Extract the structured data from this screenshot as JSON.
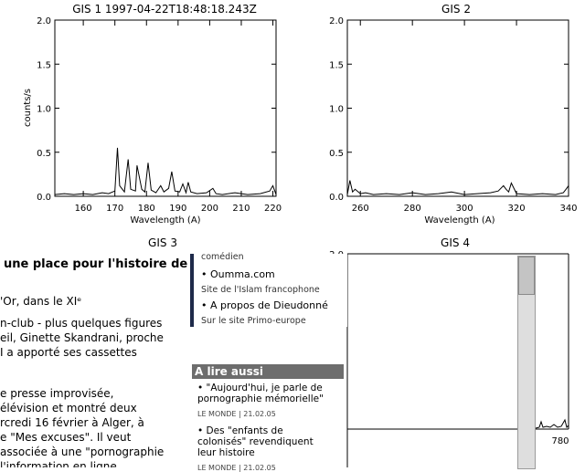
{
  "plots": [
    {
      "title": "GIS 1 1997-04-22T18:48:18.243Z",
      "ylabel": "counts/s",
      "xlabel": "Wavelength (A)",
      "xticks": [
        "160",
        "170",
        "180",
        "190",
        "200",
        "210",
        "220"
      ],
      "yticks": [
        "0.0",
        "0.5",
        "1.0",
        "1.5",
        "2.0"
      ]
    },
    {
      "title": "GIS 2",
      "ylabel": "",
      "xlabel": "Wavelength (A)",
      "xticks": [
        "260",
        "280",
        "300",
        "320",
        "340"
      ],
      "yticks": [
        "0.0",
        "0.5",
        "1.0",
        "1.5",
        "2.0"
      ]
    },
    {
      "title": "GIS 3"
    },
    {
      "title": "GIS 4",
      "yticks": [
        "2.0"
      ],
      "xticks": [
        "780"
      ]
    }
  ],
  "chart_data": [
    {
      "type": "line",
      "title": "GIS 1 1997-04-22T18:48:18.243Z",
      "xlabel": "Wavelength (A)",
      "ylabel": "counts/s",
      "xlim": [
        151,
        221
      ],
      "ylim": [
        0,
        2
      ],
      "x": [
        151,
        154,
        157,
        160,
        163,
        166,
        168,
        170,
        170.8,
        171.5,
        173,
        174.2,
        175,
        176.5,
        177,
        178.5,
        179.5,
        180.5,
        181.5,
        183,
        184.5,
        185.5,
        187,
        188,
        189,
        190.5,
        191.5,
        192.5,
        193.2,
        194,
        196,
        199,
        201,
        202,
        204,
        208,
        212,
        216,
        219,
        220,
        221
      ],
      "y": [
        0.02,
        0.03,
        0.02,
        0.03,
        0.02,
        0.04,
        0.03,
        0.06,
        0.55,
        0.12,
        0.05,
        0.42,
        0.08,
        0.06,
        0.35,
        0.08,
        0.05,
        0.38,
        0.07,
        0.04,
        0.12,
        0.05,
        0.09,
        0.28,
        0.06,
        0.05,
        0.14,
        0.04,
        0.16,
        0.05,
        0.03,
        0.04,
        0.09,
        0.03,
        0.02,
        0.04,
        0.02,
        0.03,
        0.06,
        0.12,
        0.02
      ]
    },
    {
      "type": "line",
      "title": "GIS 2",
      "xlabel": "Wavelength (A)",
      "xlim": [
        255,
        340
      ],
      "ylim": [
        0,
        2
      ],
      "x": [
        255,
        256,
        257,
        258,
        260,
        262,
        265,
        270,
        275,
        280,
        285,
        290,
        295,
        300,
        305,
        310,
        313,
        315,
        316,
        317,
        318,
        320,
        325,
        330,
        335,
        338,
        339,
        340
      ],
      "y": [
        0.02,
        0.18,
        0.05,
        0.08,
        0.03,
        0.04,
        0.02,
        0.03,
        0.02,
        0.04,
        0.02,
        0.03,
        0.05,
        0.02,
        0.03,
        0.04,
        0.06,
        0.12,
        0.08,
        0.05,
        0.15,
        0.03,
        0.02,
        0.03,
        0.02,
        0.04,
        0.08,
        0.12
      ]
    }
  ],
  "article": {
    "heading": "une place pour l'histoire de",
    "lines": [
      "'Or, dans le XIᵉ",
      "n-club - plus quelques figures",
      "eil, Ginette Skandrani, proche",
      "I a apporté ses cassettes",
      "",
      "e presse improvisée,",
      "élévision et montré deux",
      "rcredi 16 février à Alger, à",
      "e \"Mes excuses\". Il veut",
      " associée à une \"pornographie",
      "l'information en ligne"
    ]
  },
  "sidebar": {
    "top_partial": "comédien",
    "items": [
      {
        "label": "• Oumma.com",
        "sub": "Site de l'Islam francophone"
      },
      {
        "label": "• A propos de Dieudonné",
        "sub": "Sur le site Primo-europe"
      }
    ],
    "section_title": "A lire aussi",
    "reads": [
      {
        "title": "• \"Aujourd'hui, je parle de pornographie mémorielle\"",
        "source": "LE MONDE | 21.02.05"
      },
      {
        "title": "• Des \"enfants de colonisés\" revendiquent leur histoire",
        "source": "LE MONDE | 21.02.05"
      }
    ]
  }
}
